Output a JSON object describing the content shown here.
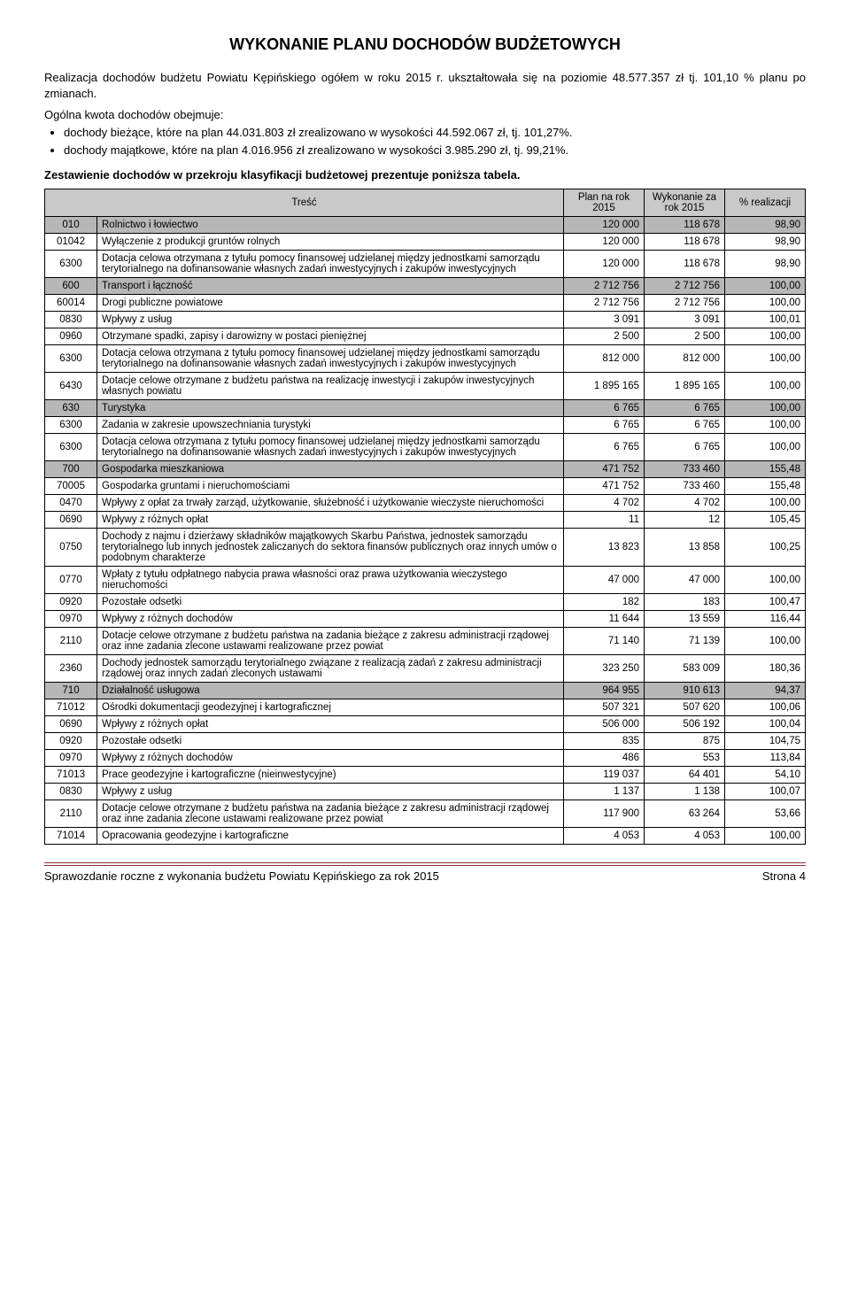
{
  "title": "WYKONANIE PLANU DOCHODÓW BUDŻETOWYCH",
  "intro": "Realizacja dochodów budżetu Powiatu Kępińskiego ogółem w roku 2015 r. ukształtowała się na poziomie 48.577.357 zł tj. 101,10 % planu po zmianach.",
  "sub_intro": "Ogólna kwota dochodów obejmuje:",
  "bullets": [
    "dochody bieżące, które na plan 44.031.803 zł zrealizowano w wysokości 44.592.067 zł, tj. 101,27%.",
    "dochody majątkowe, które na plan 4.016.956 zł zrealizowano w wysokości 3.985.290 zł, tj. 99,21%."
  ],
  "section_note": "Zestawienie dochodów w przekroju klasyfikacji budżetowej prezentuje poniższa tabela.",
  "headers": {
    "tresc": "Treść",
    "plan": "Plan na rok 2015",
    "wyk": "Wykonanie za rok 2015",
    "pct": "% realizacji"
  },
  "rows": [
    {
      "cat": true,
      "code": "010",
      "desc": "Rolnictwo i łowiectwo",
      "plan": "120 000",
      "wyk": "118 678",
      "pct": "98,90"
    },
    {
      "code": "01042",
      "desc": "Wyłączenie z produkcji gruntów rolnych",
      "plan": "120 000",
      "wyk": "118 678",
      "pct": "98,90"
    },
    {
      "code": "6300",
      "desc": "Dotacja celowa otrzymana z tytułu pomocy finansowej udzielanej między jednostkami samorządu terytorialnego na dofinansowanie własnych zadań inwestycyjnych i zakupów inwestycyjnych",
      "plan": "120 000",
      "wyk": "118 678",
      "pct": "98,90"
    },
    {
      "cat": true,
      "code": "600",
      "desc": "Transport i łączność",
      "plan": "2 712 756",
      "wyk": "2 712 756",
      "pct": "100,00"
    },
    {
      "code": "60014",
      "desc": "Drogi publiczne powiatowe",
      "plan": "2 712 756",
      "wyk": "2 712 756",
      "pct": "100,00"
    },
    {
      "code": "0830",
      "desc": "Wpływy z usług",
      "plan": "3 091",
      "wyk": "3 091",
      "pct": "100,01"
    },
    {
      "code": "0960",
      "desc": "Otrzymane spadki, zapisy i darowizny w postaci pieniężnej",
      "plan": "2 500",
      "wyk": "2 500",
      "pct": "100,00"
    },
    {
      "code": "6300",
      "desc": "Dotacja celowa otrzymana z tytułu pomocy finansowej udzielanej między jednostkami samorządu terytorialnego na dofinansowanie własnych zadań inwestycyjnych i zakupów inwestycyjnych",
      "plan": "812 000",
      "wyk": "812 000",
      "pct": "100,00"
    },
    {
      "code": "6430",
      "desc": "Dotacje celowe otrzymane z budżetu państwa na realizację inwestycji i zakupów inwestycyjnych własnych powiatu",
      "plan": "1 895 165",
      "wyk": "1 895 165",
      "pct": "100,00"
    },
    {
      "cat": true,
      "code": "630",
      "desc": "Turystyka",
      "plan": "6 765",
      "wyk": "6 765",
      "pct": "100,00"
    },
    {
      "code": "6300",
      "desc": "Zadania w zakresie upowszechniania turystyki",
      "plan": "6 765",
      "wyk": "6 765",
      "pct": "100,00"
    },
    {
      "code": "6300",
      "desc": "Dotacja celowa otrzymana z tytułu pomocy finansowej udzielanej między jednostkami samorządu terytorialnego na dofinansowanie własnych zadań inwestycyjnych i zakupów inwestycyjnych",
      "plan": "6 765",
      "wyk": "6 765",
      "pct": "100,00"
    },
    {
      "cat": true,
      "code": "700",
      "desc": "Gospodarka mieszkaniowa",
      "plan": "471 752",
      "wyk": "733 460",
      "pct": "155,48"
    },
    {
      "code": "70005",
      "desc": "Gospodarka gruntami i nieruchomościami",
      "plan": "471 752",
      "wyk": "733 460",
      "pct": "155,48"
    },
    {
      "code": "0470",
      "desc": "Wpływy z opłat za trwały zarząd, użytkowanie, służebność i użytkowanie wieczyste nieruchomości",
      "plan": "4 702",
      "wyk": "4 702",
      "pct": "100,00"
    },
    {
      "code": "0690",
      "desc": "Wpływy z różnych opłat",
      "plan": "11",
      "wyk": "12",
      "pct": "105,45"
    },
    {
      "code": "0750",
      "desc": "Dochody z najmu i dzierżawy składników majątkowych Skarbu Państwa, jednostek samorządu terytorialnego lub innych jednostek zaliczanych do sektora finansów publicznych oraz innych umów o podobnym charakterze",
      "plan": "13 823",
      "wyk": "13 858",
      "pct": "100,25"
    },
    {
      "code": "0770",
      "desc": "Wpłaty z tytułu odpłatnego nabycia prawa własności oraz prawa użytkowania wieczystego nieruchomości",
      "plan": "47 000",
      "wyk": "47 000",
      "pct": "100,00"
    },
    {
      "code": "0920",
      "desc": "Pozostałe odsetki",
      "plan": "182",
      "wyk": "183",
      "pct": "100,47"
    },
    {
      "code": "0970",
      "desc": "Wpływy z różnych dochodów",
      "plan": "11 644",
      "wyk": "13 559",
      "pct": "116,44"
    },
    {
      "code": "2110",
      "desc": "Dotacje celowe otrzymane z budżetu państwa na zadania bieżące z zakresu administracji rządowej oraz inne zadania zlecone ustawami realizowane przez powiat",
      "plan": "71 140",
      "wyk": "71 139",
      "pct": "100,00"
    },
    {
      "code": "2360",
      "desc": "Dochody jednostek samorządu terytorialnego związane z realizacją zadań z zakresu administracji rządowej oraz innych zadań zleconych ustawami",
      "plan": "323 250",
      "wyk": "583 009",
      "pct": "180,36"
    },
    {
      "cat": true,
      "code": "710",
      "desc": "Działalność usługowa",
      "plan": "964 955",
      "wyk": "910 613",
      "pct": "94,37"
    },
    {
      "code": "71012",
      "desc": "Ośrodki dokumentacji geodezyjnej i kartograficznej",
      "plan": "507 321",
      "wyk": "507 620",
      "pct": "100,06"
    },
    {
      "code": "0690",
      "desc": "Wpływy z różnych opłat",
      "plan": "506 000",
      "wyk": "506 192",
      "pct": "100,04"
    },
    {
      "code": "0920",
      "desc": "Pozostałe odsetki",
      "plan": "835",
      "wyk": "875",
      "pct": "104,75"
    },
    {
      "code": "0970",
      "desc": "Wpływy z różnych dochodów",
      "plan": "486",
      "wyk": "553",
      "pct": "113,84"
    },
    {
      "code": "71013",
      "desc": "Prace geodezyjne i kartograficzne (nieinwestycyjne)",
      "plan": "119 037",
      "wyk": "64 401",
      "pct": "54,10"
    },
    {
      "code": "0830",
      "desc": "Wpływy z usług",
      "plan": "1 137",
      "wyk": "1 138",
      "pct": "100,07"
    },
    {
      "code": "2110",
      "desc": "Dotacje celowe otrzymane z budżetu państwa na zadania bieżące z zakresu administracji rządowej oraz inne zadania zlecone ustawami realizowane przez powiat",
      "plan": "117 900",
      "wyk": "63 264",
      "pct": "53,66"
    },
    {
      "code": "71014",
      "desc": "Opracowania geodezyjne i kartograficzne",
      "plan": "4 053",
      "wyk": "4 053",
      "pct": "100,00"
    }
  ],
  "footer_left": "Sprawozdanie roczne z wykonania budżetu Powiatu Kępińskiego za rok 2015",
  "footer_right": "Strona 4"
}
